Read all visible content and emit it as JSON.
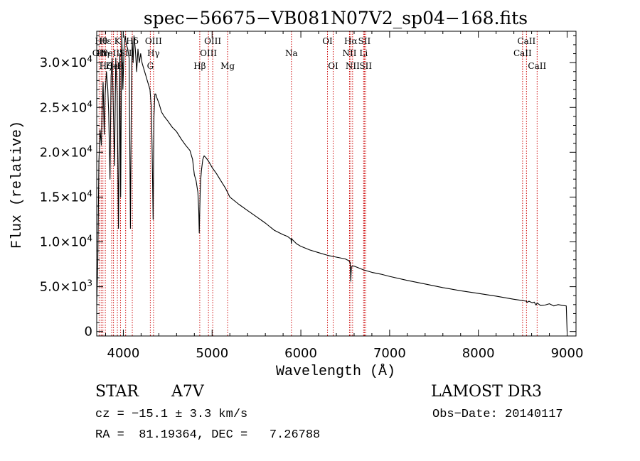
{
  "chart_data": {
    "type": "line",
    "title": "spec−56675−VB081N07V2_sp04−168.fits",
    "xlabel": "Wavelength (Å)",
    "ylabel": "Flux (relative)",
    "xlim": [
      3700,
      9100
    ],
    "ylim": [
      -500,
      33500
    ],
    "x_ticks": [
      {
        "value": 4000,
        "label": "4000"
      },
      {
        "value": 5000,
        "label": "5000"
      },
      {
        "value": 6000,
        "label": "6000"
      },
      {
        "value": 7000,
        "label": "7000"
      },
      {
        "value": 8000,
        "label": "8000"
      },
      {
        "value": 9000,
        "label": "9000"
      }
    ],
    "y_ticks": [
      {
        "value": 0,
        "mant": "0",
        "exp": ""
      },
      {
        "value": 5000,
        "mant": "5.0×10",
        "exp": "3"
      },
      {
        "value": 10000,
        "mant": "1.0×10",
        "exp": "4"
      },
      {
        "value": 15000,
        "mant": "1.5×10",
        "exp": "4"
      },
      {
        "value": 20000,
        "mant": "2.0×10",
        "exp": "4"
      },
      {
        "value": 25000,
        "mant": "2.5×10",
        "exp": "4"
      },
      {
        "value": 30000,
        "mant": "3.0×10",
        "exp": "4"
      }
    ],
    "series": [
      {
        "name": "flux",
        "x": [
          3700,
          3712,
          3725,
          3738,
          3752,
          3760,
          3772,
          3785,
          3795,
          3810,
          3825,
          3835,
          3850,
          3862,
          3875,
          3885,
          3900,
          3915,
          3930,
          3945,
          3960,
          3970,
          3982,
          3995,
          4008,
          4020,
          4035,
          4050,
          4065,
          4080,
          4090,
          4100,
          4110,
          4120,
          4135,
          4150,
          4165,
          4180,
          4195,
          4210,
          4225,
          4240,
          4255,
          4270,
          4285,
          4300,
          4315,
          4325,
          4335,
          4340,
          4345,
          4355,
          4365,
          4380,
          4400,
          4430,
          4460,
          4500,
          4550,
          4600,
          4650,
          4700,
          4750,
          4780,
          4800,
          4820,
          4840,
          4850,
          4855,
          4861,
          4866,
          4872,
          4880,
          4895,
          4910,
          4930,
          4960,
          5000,
          5050,
          5100,
          5150,
          5200,
          5300,
          5400,
          5500,
          5600,
          5700,
          5800,
          5850,
          5890,
          5893,
          5896,
          5900,
          5950,
          6000,
          6100,
          6200,
          6300,
          6400,
          6500,
          6540,
          6555,
          6560,
          6563,
          6566,
          6570,
          6580,
          6600,
          6650,
          6700,
          6800,
          6900,
          7000,
          7200,
          7400,
          7600,
          7800,
          8000,
          8200,
          8400,
          8500,
          8540,
          8550,
          8570,
          8590,
          8610,
          8630,
          8650,
          8662,
          8680,
          8700,
          8750,
          8800,
          8850,
          8900,
          8950,
          8990,
          9000
        ],
        "y": [
          3000,
          7800,
          19000,
          22500,
          20800,
          24500,
          27800,
          22000,
          26500,
          29000,
          27000,
          24500,
          17000,
          28500,
          30500,
          26000,
          18500,
          30500,
          26500,
          11500,
          31000,
          15000,
          33500,
          27000,
          31500,
          33000,
          32000,
          31500,
          30500,
          11500,
          26000,
          32500,
          30000,
          33000,
          31500,
          29000,
          31500,
          30000,
          31000,
          30000,
          29500,
          29000,
          28500,
          28000,
          27500,
          27000,
          25000,
          20000,
          12500,
          18500,
          24000,
          26500,
          26500,
          26000,
          25500,
          24500,
          24000,
          23500,
          22800,
          22300,
          21500,
          20800,
          20200,
          19200,
          17500,
          16800,
          15500,
          13500,
          11000,
          13500,
          15500,
          17000,
          18000,
          19200,
          19600,
          19400,
          19000,
          18300,
          17600,
          16800,
          16000,
          15000,
          14200,
          13500,
          12800,
          12100,
          11300,
          10800,
          10600,
          10300,
          9800,
          10400,
          10300,
          9800,
          9500,
          9100,
          8800,
          8500,
          8300,
          8100,
          7900,
          7700,
          6500,
          5600,
          6500,
          7200,
          7300,
          7300,
          7100,
          6900,
          6600,
          6400,
          6150,
          5700,
          5300,
          4900,
          4550,
          4250,
          3950,
          3600,
          3450,
          3380,
          3250,
          3380,
          3280,
          3200,
          3280,
          2950,
          3180,
          3050,
          2900,
          2950,
          3100,
          2850,
          3000,
          2900,
          2850,
          0
        ]
      }
    ],
    "line_markers": [
      {
        "x": 3727,
        "labels": [
          "OII"
        ],
        "rows": [
          1
        ]
      },
      {
        "x": 3750,
        "labels": [
          "Hθ"
        ],
        "rows": [
          0
        ]
      },
      {
        "x": 3770,
        "labels": [
          "Hη"
        ],
        "rows": [
          1
        ]
      },
      {
        "x": 3797,
        "labels": [
          "Hζ",
          "Hε"
        ],
        "rows": [
          2,
          0
        ]
      },
      {
        "x": 3869,
        "labels": [
          "NeIII"
        ],
        "rows": [
          1
        ]
      },
      {
        "x": 3889,
        "labels": [
          "HeI"
        ],
        "rows": [
          2
        ]
      },
      {
        "x": 3933,
        "labels": [
          "K"
        ],
        "rows": [
          0
        ]
      },
      {
        "x": 3968,
        "labels": [
          "H"
        ],
        "rows": [
          2
        ]
      },
      {
        "x": 4026,
        "labels": [
          "SII"
        ],
        "rows": [
          1
        ]
      },
      {
        "x": 4101,
        "labels": [
          "Hδ"
        ],
        "rows": [
          0
        ]
      },
      {
        "x": 4304,
        "labels": [
          "G"
        ],
        "rows": [
          2
        ]
      },
      {
        "x": 4340,
        "labels": [
          "OIII",
          "Hγ"
        ],
        "rows": [
          0,
          1
        ]
      },
      {
        "x": 4861,
        "labels": [
          "Hβ"
        ],
        "rows": [
          2
        ]
      },
      {
        "x": 4959,
        "labels": [
          "OIII"
        ],
        "rows": [
          1
        ]
      },
      {
        "x": 5007,
        "labels": [
          "OIII"
        ],
        "rows": [
          0
        ]
      },
      {
        "x": 5175,
        "labels": [
          "Mg"
        ],
        "rows": [
          2
        ]
      },
      {
        "x": 5894,
        "labels": [
          "Na"
        ],
        "rows": [
          1
        ]
      },
      {
        "x": 6300,
        "labels": [
          "OI"
        ],
        "rows": [
          0
        ]
      },
      {
        "x": 6364,
        "labels": [
          "OI"
        ],
        "rows": [
          2
        ]
      },
      {
        "x": 6548,
        "labels": [
          "NII"
        ],
        "rows": [
          1
        ]
      },
      {
        "x": 6563,
        "labels": [
          "Hα"
        ],
        "rows": [
          0
        ]
      },
      {
        "x": 6583,
        "labels": [
          "NII"
        ],
        "rows": [
          2
        ]
      },
      {
        "x": 6707,
        "labels": [
          "Li"
        ],
        "rows": [
          1
        ]
      },
      {
        "x": 6716,
        "labels": [
          "SII"
        ],
        "rows": [
          0
        ]
      },
      {
        "x": 6731,
        "labels": [
          "SII"
        ],
        "rows": [
          2
        ]
      },
      {
        "x": 8498,
        "labels": [
          "CaII"
        ],
        "rows": [
          1
        ]
      },
      {
        "x": 8542,
        "labels": [
          "CaII"
        ],
        "rows": [
          0
        ]
      },
      {
        "x": 8662,
        "labels": [
          "CaII"
        ],
        "rows": [
          2
        ]
      }
    ]
  },
  "info": {
    "object_class": "STAR",
    "subclass": "A7V",
    "survey": "LAMOST DR3",
    "redshift": "cz = −15.1 ± 3.3 km/s",
    "obs_date": "Obs−Date: 20140117",
    "coords": "RA =  81.19364, DEC =   7.26788"
  },
  "colors": {
    "axis": "#000000",
    "spectrum": "#000000",
    "marker": "#cc0000",
    "background": "#ffffff"
  }
}
